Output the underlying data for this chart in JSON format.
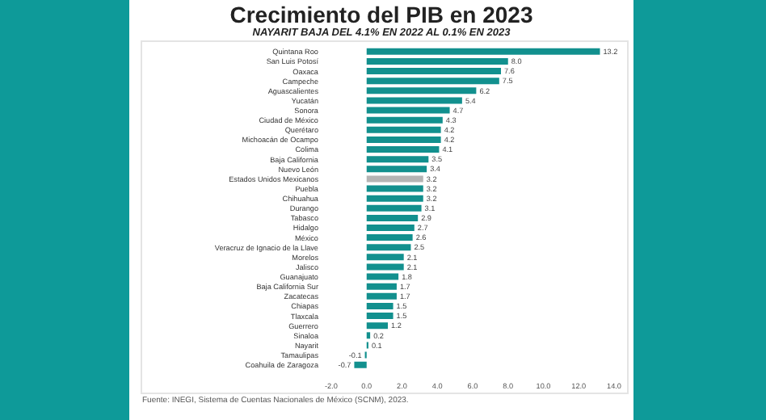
{
  "chart_data": {
    "type": "bar",
    "orientation": "horizontal",
    "title": "Crecimiento del PIB en 2023",
    "subtitle": "NAYARIT BAJA DEL 4.1% EN 2022 AL 0.1% EN 2023",
    "categories": [
      "Quintana Roo",
      "San Luis Potosí",
      "Oaxaca",
      "Campeche",
      "Aguascalientes",
      "Yucatán",
      "Sonora",
      "Ciudad de México",
      "Querétaro",
      "Michoacán de Ocampo",
      "Colima",
      "Baja California",
      "Nuevo León",
      "Estados Unidos Mexicanos",
      "Puebla",
      "Chihuahua",
      "Durango",
      "Tabasco",
      "Hidalgo",
      "México",
      "Veracruz de Ignacio de la Llave",
      "Morelos",
      "Jalisco",
      "Guanajuato",
      "Baja California Sur",
      "Zacatecas",
      "Chiapas",
      "Tlaxcala",
      "Guerrero",
      "Sinaloa",
      "Nayarit",
      "Tamaulipas",
      "Coahuila de Zaragoza"
    ],
    "values": [
      13.2,
      8.0,
      7.6,
      7.5,
      6.2,
      5.4,
      4.7,
      4.3,
      4.2,
      4.2,
      4.1,
      3.5,
      3.4,
      3.2,
      3.2,
      3.2,
      3.1,
      2.9,
      2.7,
      2.6,
      2.5,
      2.1,
      2.1,
      1.8,
      1.7,
      1.7,
      1.5,
      1.5,
      1.2,
      0.2,
      0.1,
      -0.1,
      -0.7
    ],
    "value_labels": [
      "13.2",
      "8.0",
      "7.6",
      "7.5",
      "6.2",
      "5.4",
      "4.7",
      "4.3",
      "4.2",
      "4.2",
      "4.1",
      "3.5",
      "3.4",
      "3.2",
      "3.2",
      "3.2",
      "3.1",
      "2.9",
      "2.7",
      "2.6",
      "2.5",
      "2.1",
      "2.1",
      "1.8",
      "1.7",
      "1.7",
      "1.5",
      "1.5",
      "1.2",
      "0.2",
      "0.1",
      "-0.1",
      "-0.7"
    ],
    "colors": [
      "#12908e",
      "#12908e",
      "#12908e",
      "#12908e",
      "#12908e",
      "#12908e",
      "#12908e",
      "#12908e",
      "#12908e",
      "#12908e",
      "#12908e",
      "#12908e",
      "#12908e",
      "#b4b4b4",
      "#12908e",
      "#12908e",
      "#12908e",
      "#12908e",
      "#12908e",
      "#12908e",
      "#12908e",
      "#12908e",
      "#12908e",
      "#12908e",
      "#12908e",
      "#12908e",
      "#12908e",
      "#12908e",
      "#12908e",
      "#12908e",
      "#12908e",
      "#12908e",
      "#12908e"
    ],
    "xlim": [
      -2,
      14
    ],
    "xticks": [
      {
        "value": -2,
        "label": "-2.0"
      },
      {
        "value": 0,
        "label": "0.0"
      },
      {
        "value": 2,
        "label": "2.0"
      },
      {
        "value": 4,
        "label": "4.0"
      },
      {
        "value": 6,
        "label": "6.0"
      },
      {
        "value": 8,
        "label": "8.0"
      },
      {
        "value": 10,
        "label": "10.0"
      },
      {
        "value": 12,
        "label": "12.0"
      },
      {
        "value": 14,
        "label": "14.0"
      }
    ],
    "annotations": [
      "Fuente: INEGI, Sistema de Cuentas Nacionales de México (SCNM), 2023."
    ],
    "grid": false,
    "legend": false
  }
}
